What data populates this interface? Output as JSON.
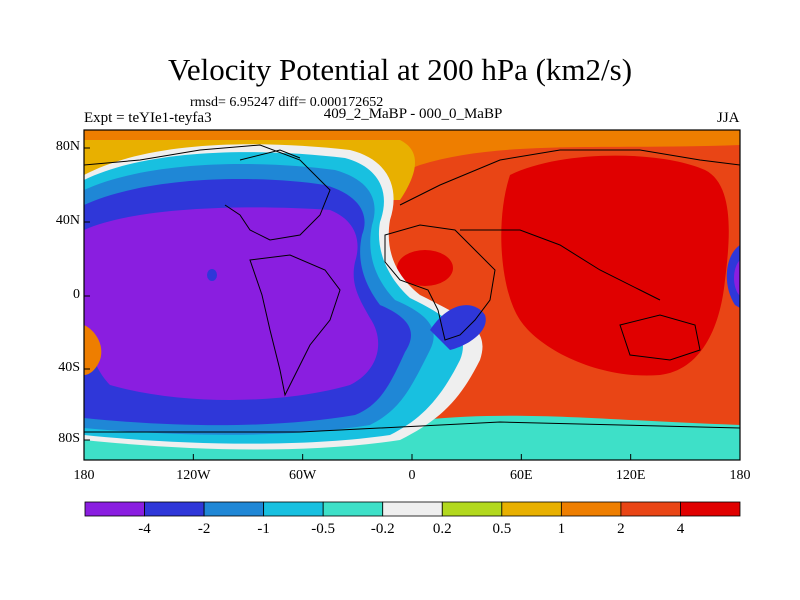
{
  "title": "Velocity Potential at 200 hPa (km2/s)",
  "stats_line": "rmsd= 6.95247 diff= 0.000172652",
  "left_label": "Expt = teYIe1-teyfa3",
  "center_label": "409_2_MaBP - 000_0_MaBP",
  "right_label": "JJA",
  "axes": {
    "x_ticks": [
      "180",
      "120W",
      "60W",
      "0",
      "60E",
      "120E",
      "180"
    ],
    "y_ticks": [
      "80N",
      "40N",
      "0",
      "40S",
      "80S"
    ]
  },
  "colorbar": {
    "labels": [
      "-4",
      "-2",
      "-1",
      "-0.5",
      "-0.2",
      "0.2",
      "0.5",
      "1",
      "2",
      "4"
    ],
    "colors": [
      "#8a1ee0",
      "#2f37d9",
      "#1f87d6",
      "#18c0e0",
      "#3ee0c8",
      "#efefef",
      "#b2d81e",
      "#e8b000",
      "#ee7e00",
      "#e94515",
      "#e00000"
    ]
  },
  "palette": {
    "purple": "#8a1ee0",
    "blue": "#2f37d9",
    "mid_blue": "#1f87d6",
    "cyan": "#18c0e0",
    "teal": "#3ee0c8",
    "white": "#efefef",
    "yellow_green": "#b2d81e",
    "orange": "#e8b000",
    "dark_orange": "#ee7e00",
    "red_orange": "#e94515",
    "red": "#e00000"
  }
}
